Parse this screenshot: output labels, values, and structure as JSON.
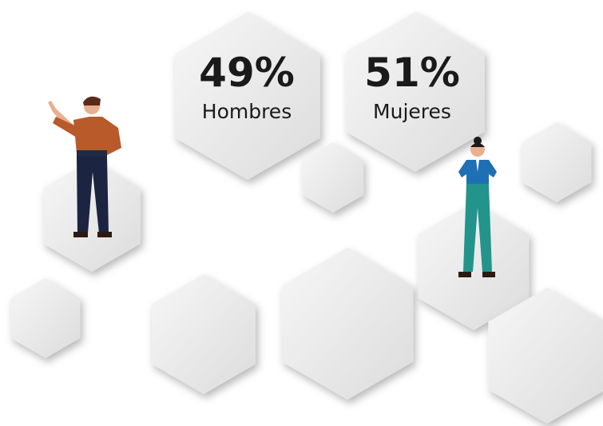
{
  "stats": [
    {
      "value": "49%",
      "label": "Hombres"
    },
    {
      "value": "51%",
      "label": "Mujeres"
    }
  ]
}
